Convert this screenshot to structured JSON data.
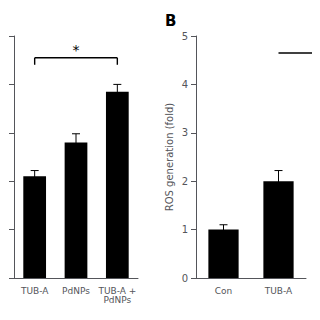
{
  "chart_data": [
    {
      "type": "bar",
      "categories": [
        "TUB-A",
        "PdNPs",
        "TUB-A +\nPdNPs"
      ],
      "values": [
        2.1,
        2.8,
        3.85
      ],
      "errors": [
        0.12,
        0.18,
        0.15
      ],
      "color": "#000000",
      "ylim": [
        0,
        5
      ],
      "yticks": [
        0,
        1,
        2,
        3,
        4,
        5
      ],
      "grid": false,
      "tick_labels": "x",
      "annotations": [
        {
          "text": "*",
          "bracket": [
            "TUB-A",
            "TUB-A +\nPdNPs"
          ],
          "y": 4.55
        }
      ]
    },
    {
      "type": "bar",
      "title": "B",
      "categories": [
        "Con",
        "TUB-A"
      ],
      "values": [
        1.0,
        2.0
      ],
      "errors": [
        0.1,
        0.22
      ],
      "color": "#000000",
      "ylabel": "ROS generation (fold)",
      "ylim": [
        0,
        5
      ],
      "yticks": [
        0,
        1,
        2,
        3,
        4,
        5
      ],
      "grid": false,
      "annotations": [
        {
          "bracket": [
            "TUB-A"
          ],
          "y": 4.65
        }
      ]
    }
  ]
}
